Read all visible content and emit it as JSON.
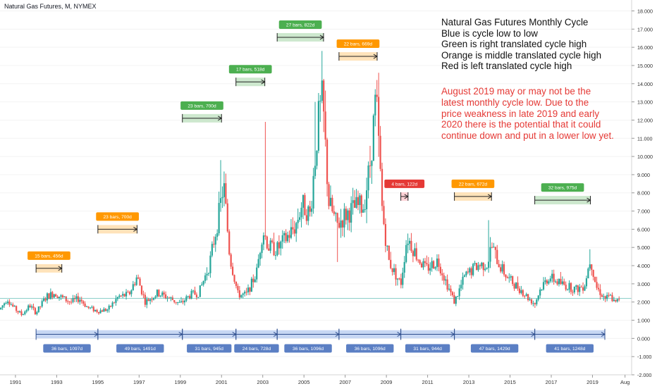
{
  "header": {
    "symbol_title": "Natural Gas Futures, M, NYMEX"
  },
  "annotations": {
    "notes": [
      "Natural Gas Futures Monthly Cycle",
      "Blue is cycle low to low",
      "Green is right translated cycle high",
      "Orange is middle translated cycle high",
      "Red is left translated cycle high"
    ],
    "warning_lines": [
      "August 2019 may or may not be the",
      "latest monthly cycle low.  Due to the",
      "price weakness in late 2019 and early",
      "2020 there is the potential that it could",
      "continue down and put in a lower low yet."
    ]
  },
  "colors": {
    "up": "#26a69a",
    "down": "#ef5350",
    "blue": "#5b7fc4",
    "blue_fill": "#b9cdf0",
    "green": "#4caf50",
    "green_fill": "#c8e6c9",
    "orange": "#ff9800",
    "orange_fill": "#ffe0b2",
    "red": "#e53935",
    "red_fill": "#ffcdd2",
    "price_line": "#26a69a",
    "axis_text": "#333333",
    "grid": "#f3f3f3"
  },
  "chart_data": {
    "type": "candlestick",
    "title": "Natural Gas Futures, M, NYMEX",
    "timeframe": "monthly",
    "y_axis": {
      "position": "right",
      "ylim": [
        -2.0,
        18.6
      ],
      "ticks": [
        "18.000",
        "17.000",
        "16.000",
        "15.000",
        "14.000",
        "13.000",
        "12.000",
        "11.000",
        "10.000",
        "9.000",
        "8.000",
        "7.000",
        "6.000",
        "5.000",
        "4.000",
        "3.000",
        "2.000",
        "1.000",
        "0.000",
        "-1.000",
        "-2.000"
      ],
      "tick_values": [
        18,
        17,
        16,
        15,
        14,
        13,
        12,
        11,
        10,
        9,
        8,
        7,
        6,
        5,
        4,
        3,
        2,
        1,
        0,
        -1,
        -2
      ]
    },
    "x_axis": {
      "range": [
        1990.25,
        2020.9
      ],
      "ticks": [
        "1991",
        "1993",
        "1995",
        "1997",
        "1999",
        "2001",
        "2003",
        "2005",
        "2007",
        "2009",
        "2011",
        "2013",
        "2015",
        "2017",
        "2019",
        "Aug"
      ],
      "tick_values": [
        1991,
        1993,
        1995,
        1997,
        1999,
        2001,
        2003,
        2005,
        2007,
        2009,
        2011,
        2013,
        2015,
        2017,
        2019,
        2020.58
      ]
    },
    "last_price": 2.2,
    "price_anchors": [
      [
        1990.25,
        1.6
      ],
      [
        1990.6,
        2.2
      ],
      [
        1990.9,
        1.7
      ],
      [
        1991.3,
        1.3
      ],
      [
        1991.7,
        1.8
      ],
      [
        1992.0,
        1.4
      ],
      [
        1992.5,
        2.3
      ],
      [
        1992.9,
        2.5
      ],
      [
        1993.3,
        2.2
      ],
      [
        1993.7,
        2.0
      ],
      [
        1994.1,
        2.2
      ],
      [
        1994.5,
        1.7
      ],
      [
        1995.0,
        1.5
      ],
      [
        1995.5,
        1.6
      ],
      [
        1996.0,
        2.3
      ],
      [
        1996.5,
        2.4
      ],
      [
        1996.9,
        3.4
      ],
      [
        1997.3,
        2.0
      ],
      [
        1997.9,
        2.5
      ],
      [
        1998.5,
        2.2
      ],
      [
        1999.0,
        1.9
      ],
      [
        1999.5,
        2.4
      ],
      [
        1999.9,
        2.5
      ],
      [
        2000.4,
        4.0
      ],
      [
        2000.9,
        7.0
      ],
      [
        2001.1,
        8.5
      ],
      [
        2001.4,
        4.5
      ],
      [
        2001.8,
        2.4
      ],
      [
        2002.2,
        2.4
      ],
      [
        2002.7,
        3.6
      ],
      [
        2003.0,
        6.0
      ],
      [
        2003.3,
        5.0
      ],
      [
        2003.7,
        4.9
      ],
      [
        2004.2,
        5.6
      ],
      [
        2004.6,
        6.2
      ],
      [
        2004.9,
        7.4
      ],
      [
        2005.3,
        6.8
      ],
      [
        2005.7,
        12.0
      ],
      [
        2005.9,
        13.2
      ],
      [
        2006.2,
        7.5
      ],
      [
        2006.6,
        6.2
      ],
      [
        2007.0,
        6.8
      ],
      [
        2007.5,
        7.2
      ],
      [
        2007.9,
        7.3
      ],
      [
        2008.2,
        9.5
      ],
      [
        2008.5,
        13.3
      ],
      [
        2008.8,
        7.0
      ],
      [
        2009.1,
        4.3
      ],
      [
        2009.4,
        3.6
      ],
      [
        2009.7,
        3.0
      ],
      [
        2010.0,
        5.6
      ],
      [
        2010.5,
        4.5
      ],
      [
        2010.9,
        3.8
      ],
      [
        2011.5,
        4.3
      ],
      [
        2011.9,
        3.1
      ],
      [
        2012.3,
        2.0
      ],
      [
        2012.8,
        3.4
      ],
      [
        2013.4,
        4.0
      ],
      [
        2013.9,
        4.1
      ],
      [
        2014.1,
        5.1
      ],
      [
        2014.5,
        4.0
      ],
      [
        2014.9,
        3.3
      ],
      [
        2015.5,
        2.7
      ],
      [
        2015.9,
        2.2
      ],
      [
        2016.2,
        1.9
      ],
      [
        2016.5,
        2.8
      ],
      [
        2016.9,
        3.4
      ],
      [
        2017.3,
        3.1
      ],
      [
        2017.7,
        2.9
      ],
      [
        2018.2,
        2.7
      ],
      [
        2018.6,
        2.9
      ],
      [
        2018.9,
        4.4
      ],
      [
        2019.2,
        2.8
      ],
      [
        2019.6,
        2.2
      ],
      [
        2019.9,
        2.3
      ],
      [
        2020.1,
        1.9
      ],
      [
        2020.3,
        2.2
      ]
    ],
    "spikes": [
      {
        "x": 2000.95,
        "high": 9.8
      },
      {
        "x": 2003.1,
        "high": 11.9
      },
      {
        "x": 2005.85,
        "high": 15.8
      },
      {
        "x": 2005.55,
        "high": 13.0
      },
      {
        "x": 2008.45,
        "high": 13.7
      },
      {
        "x": 2013.95,
        "high": 6.5
      },
      {
        "x": 2018.9,
        "high": 4.9
      },
      {
        "x": 2006.6,
        "low": 4.2
      }
    ],
    "cycle_lows": [
      {
        "label": "36 bars, 1097d",
        "x_start": 1992.0,
        "x_end": 1995.0
      },
      {
        "label": "49 bars, 1491d",
        "x_start": 1995.0,
        "x_end": 1999.1
      },
      {
        "label": "31 bars, 945d",
        "x_start": 1999.1,
        "x_end": 2001.7
      },
      {
        "label": "24 bars, 728d",
        "x_start": 2001.7,
        "x_end": 2003.7
      },
      {
        "label": "36 bars, 1096d",
        "x_start": 2003.7,
        "x_end": 2006.7
      },
      {
        "label": "36 bars, 1096d",
        "x_start": 2006.7,
        "x_end": 2009.7
      },
      {
        "label": "31 bars, 944d",
        "x_start": 2009.7,
        "x_end": 2012.3
      },
      {
        "label": "47 bars, 1429d",
        "x_start": 2012.3,
        "x_end": 2016.2
      },
      {
        "label": "41 bars, 1248d",
        "x_start": 2016.2,
        "x_end": 2019.6
      }
    ],
    "cycle_highs": [
      {
        "label": "15 bars, 456d",
        "color": "orange",
        "x_start": 1992.0,
        "x_end": 1993.25,
        "y": 3.85
      },
      {
        "label": "23 bars, 700d",
        "color": "orange",
        "x_start": 1995.0,
        "x_end": 1996.9,
        "y": 6.0
      },
      {
        "label": "23 bars, 700d",
        "color": "green",
        "x_start": 1999.1,
        "x_end": 2001.0,
        "y": 12.1
      },
      {
        "label": "17 bars, 518d",
        "color": "green",
        "x_start": 2001.7,
        "x_end": 2003.1,
        "y": 14.1
      },
      {
        "label": "27 bars, 822d",
        "color": "green",
        "x_start": 2003.7,
        "x_end": 2005.95,
        "y": 16.55
      },
      {
        "label": "22 bars, 669d",
        "color": "orange",
        "x_start": 2006.7,
        "x_end": 2008.55,
        "y": 15.5
      },
      {
        "label": "4 bars, 122d",
        "color": "red",
        "x_start": 2009.7,
        "x_end": 2010.05,
        "y": 7.8
      },
      {
        "label": "22 bars, 672d",
        "color": "orange",
        "x_start": 2012.3,
        "x_end": 2014.1,
        "y": 7.8
      },
      {
        "label": "32 bars, 975d",
        "color": "green",
        "x_start": 2016.2,
        "x_end": 2018.9,
        "y": 7.6
      }
    ]
  }
}
